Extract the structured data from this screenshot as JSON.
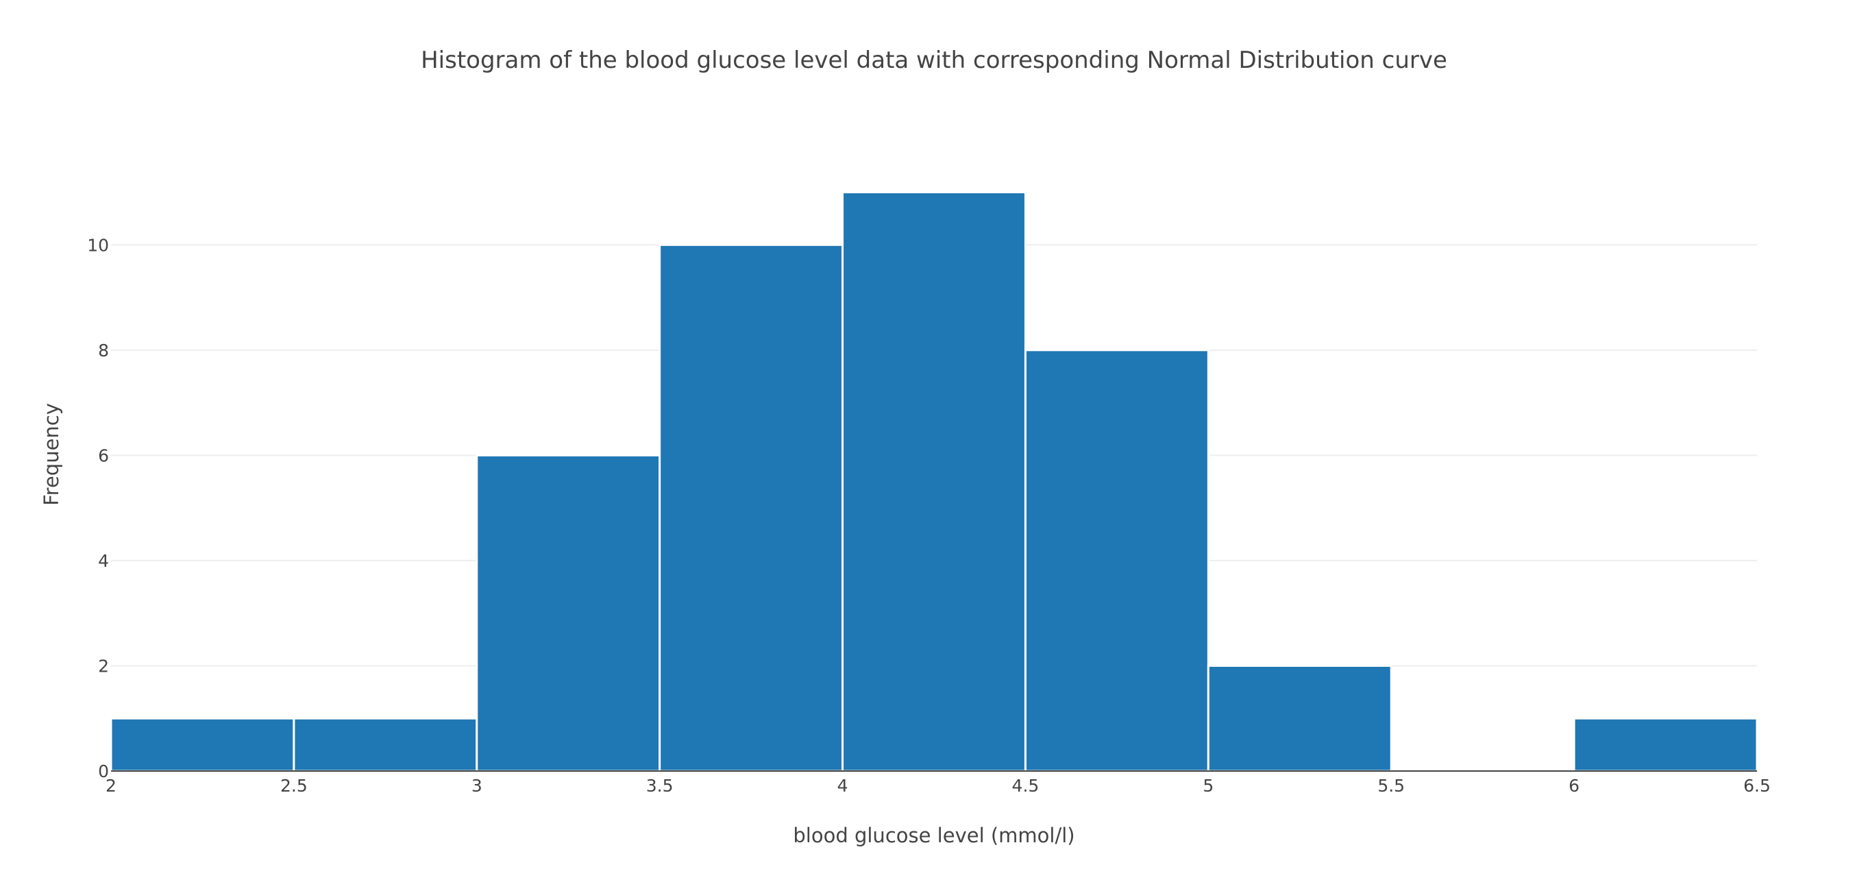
{
  "chart_data": {
    "type": "bar",
    "title": "Histogram of the blood glucose level data with corresponding Normal Distribution curve",
    "xlabel": "blood glucose level (mmol/l)",
    "ylabel": "Frequency",
    "bins": [
      {
        "start": 2.0,
        "end": 2.5,
        "count": 1
      },
      {
        "start": 2.5,
        "end": 3.0,
        "count": 1
      },
      {
        "start": 3.0,
        "end": 3.5,
        "count": 6
      },
      {
        "start": 3.5,
        "end": 4.0,
        "count": 10
      },
      {
        "start": 4.0,
        "end": 4.5,
        "count": 11
      },
      {
        "start": 4.5,
        "end": 5.0,
        "count": 8
      },
      {
        "start": 5.0,
        "end": 5.5,
        "count": 2
      },
      {
        "start": 5.5,
        "end": 6.0,
        "count": 0
      },
      {
        "start": 6.0,
        "end": 6.5,
        "count": 1
      }
    ],
    "xlim": [
      2,
      6.5
    ],
    "ylim": [
      0,
      11.58
    ],
    "x_ticks": [
      "2",
      "2.5",
      "3",
      "3.5",
      "4",
      "4.5",
      "5",
      "5.5",
      "6",
      "6.5"
    ],
    "y_ticks": [
      "0",
      "2",
      "4",
      "6",
      "8",
      "10"
    ],
    "grid": true,
    "colors": {
      "bar": "#1f77b4",
      "grid": "#eeeeee",
      "text": "#444444"
    }
  }
}
